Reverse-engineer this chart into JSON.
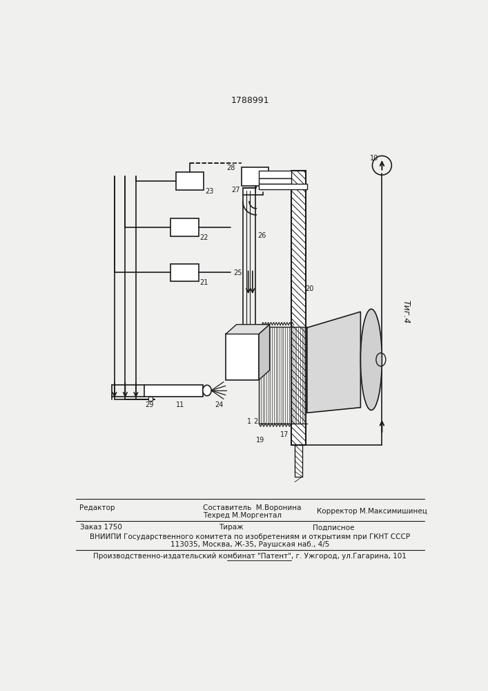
{
  "title": "1788991",
  "fig_label": "Τиг.4",
  "bg_color": "#f0f0ee",
  "line_color": "#1a1a1a",
  "footer": {
    "line1_left": "Редактор",
    "line1_center_top": "Составитель  М.Воронина",
    "line1_center_bot": "Техред М.Моргентал",
    "line1_right": "Корректор М.Максимишинец",
    "line2_left": "Заказ 1750",
    "line2_center": "Тираж",
    "line2_right": "Подписное",
    "line3": "ВНИИПИ Государственного комитета по изобретениям и открытиям при ГКНТ СССР",
    "line4": "113035, Москва, Ж-35, Раушская наб., 4/5",
    "line5": "Производственно-издательский комбинат \"Патент\", г. Ужгород, ул.Гагарина, 101"
  }
}
